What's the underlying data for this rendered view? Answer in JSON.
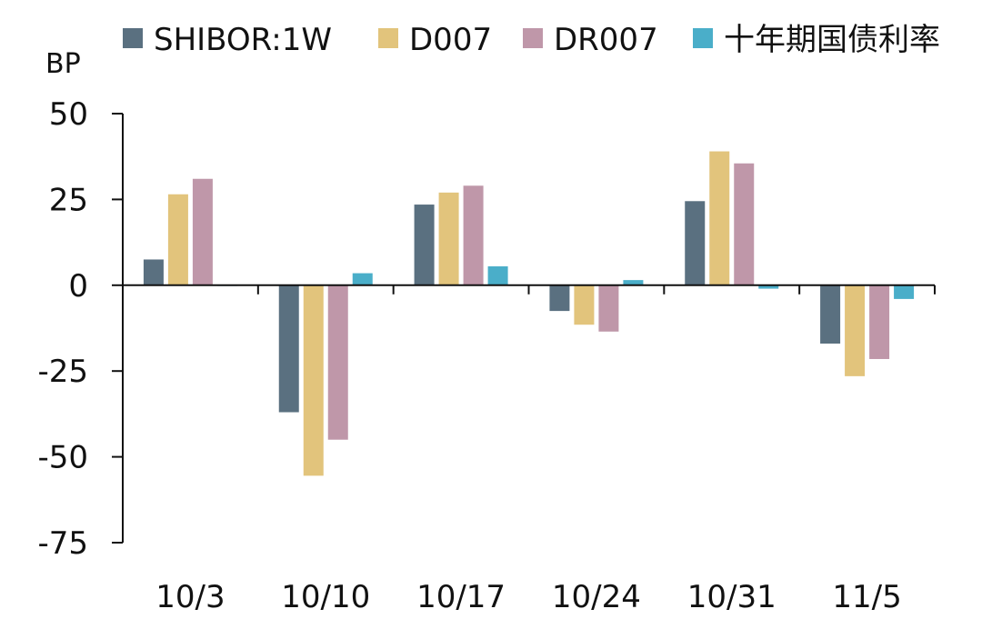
{
  "chart_data": {
    "type": "bar",
    "unit_label": "BP",
    "categories": [
      "10/3",
      "10/10",
      "10/17",
      "10/24",
      "10/31",
      "11/5"
    ],
    "series": [
      {
        "name": "SHIBOR:1W",
        "color": "#5a7080",
        "values": [
          7.5,
          -37,
          23.5,
          -7.5,
          24.5,
          -17
        ]
      },
      {
        "name": "D007",
        "color": "#e2c47c",
        "values": [
          26.5,
          -55.5,
          27,
          -11.5,
          39,
          -26.5
        ]
      },
      {
        "name": "DR007",
        "color": "#bf97a9",
        "values": [
          31,
          -45,
          29,
          -13.5,
          35.5,
          -21.5
        ]
      },
      {
        "name": "十年期国债利率",
        "color": "#4aaec9",
        "values": [
          0,
          3.5,
          5.5,
          1.5,
          -1,
          -4
        ]
      }
    ],
    "yticks": [
      "50",
      "25",
      "0",
      "-25",
      "-50",
      "-75"
    ],
    "ylim": [
      -75,
      50
    ],
    "grid": false,
    "legend_position": "top"
  }
}
